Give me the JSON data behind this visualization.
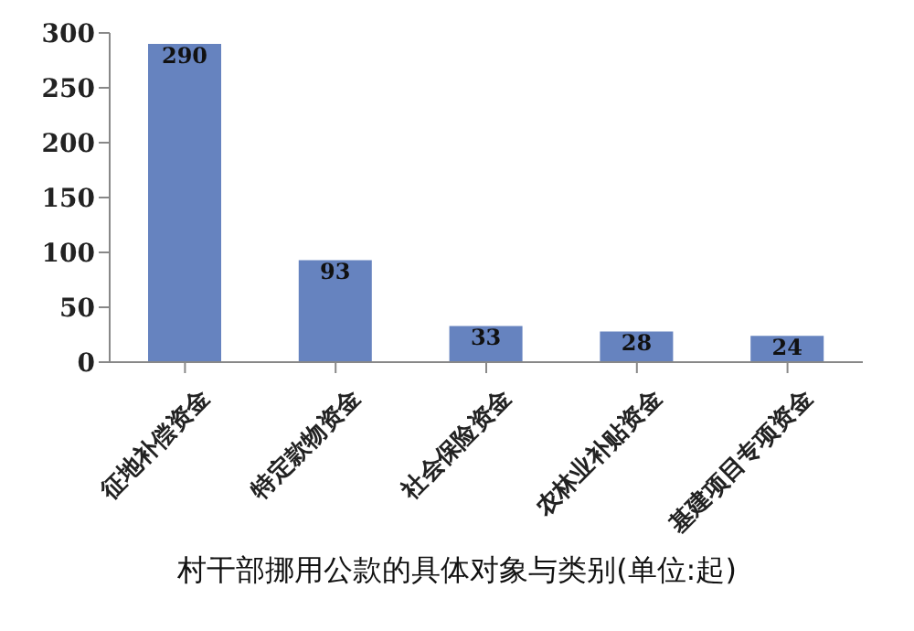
{
  "chart_data": {
    "type": "bar",
    "title": "村干部挪用公款的具体对象与类别(单位:起)",
    "categories": [
      "征地补偿资金",
      "特定款物资金",
      "社会保险资金",
      "农林业补贴资金",
      "基建项目专项资金"
    ],
    "values": [
      290,
      93,
      33,
      28,
      24
    ],
    "color": "#6683bf",
    "ylim": [
      0,
      300
    ],
    "yticks": [
      0,
      50,
      100,
      150,
      200,
      250,
      300
    ],
    "data_labels": true
  }
}
